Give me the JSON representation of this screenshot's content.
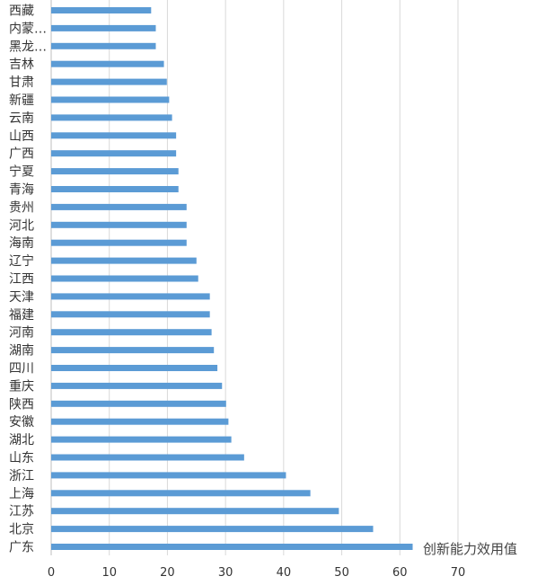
{
  "chart_data": {
    "type": "bar",
    "orientation": "horizontal",
    "categories": [
      "西藏",
      "内蒙…",
      "黑龙…",
      "吉林",
      "甘肃",
      "新疆",
      "云南",
      "山西",
      "广西",
      "宁夏",
      "青海",
      "贵州",
      "河北",
      "海南",
      "辽宁",
      "江西",
      "天津",
      "福建",
      "河南",
      "湖南",
      "四川",
      "重庆",
      "陕西",
      "安徽",
      "湖北",
      "山东",
      "浙江",
      "上海",
      "江苏",
      "北京",
      "广东"
    ],
    "series": [
      {
        "name": "创新能力效用值",
        "values": [
          17.2,
          18.0,
          18.0,
          19.4,
          19.9,
          20.3,
          20.8,
          21.5,
          21.5,
          21.9,
          21.9,
          23.3,
          23.3,
          23.3,
          25.0,
          25.3,
          27.3,
          27.3,
          27.6,
          28.0,
          28.6,
          29.4,
          30.1,
          30.5,
          31.0,
          33.2,
          40.4,
          44.6,
          49.5,
          55.4,
          62.2
        ]
      }
    ],
    "xlim": [
      0,
      70
    ],
    "xticks": [
      0,
      10,
      20,
      30,
      40,
      50,
      60,
      70
    ],
    "grid": true,
    "bar_color": "#5b9bd5",
    "grid_color": "#d9d9d9"
  }
}
